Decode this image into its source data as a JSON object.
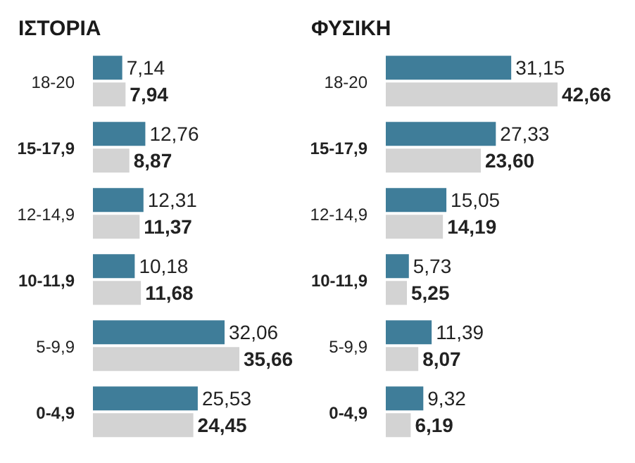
{
  "chart_data": [
    {
      "type": "bar",
      "orientation": "horizontal",
      "title": "ΙΣΤΟΡΙΑ",
      "categories": [
        "18-20",
        "15-17,9",
        "12-14,9",
        "10-11,9",
        "5-9,9",
        "0-4,9"
      ],
      "series": [
        {
          "color": "#3f7d99",
          "values": [
            7.14,
            12.76,
            12.31,
            10.18,
            32.06,
            25.53
          ],
          "value_labels": [
            "7,14",
            "12,76",
            "12,31",
            "10,18",
            "32,06",
            "25,53"
          ]
        },
        {
          "color": "#d3d3d3",
          "values": [
            7.94,
            8.87,
            11.37,
            11.68,
            35.66,
            24.45
          ],
          "value_labels": [
            "7,94",
            "8,87",
            "11,37",
            "11,68",
            "35,66",
            "24,45"
          ]
        }
      ],
      "tick_labels": false
    },
    {
      "type": "bar",
      "orientation": "horizontal",
      "title": "ΦΥΣΙΚΗ",
      "categories": [
        "18-20",
        "15-17,9",
        "12-14,9",
        "10-11,9",
        "5-9,9",
        "0-4,9"
      ],
      "series": [
        {
          "color": "#3f7d99",
          "values": [
            31.15,
            27.33,
            15.05,
            5.73,
            11.39,
            9.32
          ],
          "value_labels": [
            "31,15",
            "27,33",
            "15,05",
            "5,73",
            "11,39",
            "9,32"
          ]
        },
        {
          "color": "#d3d3d3",
          "values": [
            42.66,
            23.6,
            14.19,
            5.25,
            8.07,
            6.19
          ],
          "value_labels": [
            "42,66",
            "23,60",
            "14,19",
            "5,25",
            "8,07",
            "6,19"
          ]
        }
      ],
      "tick_labels": false
    }
  ]
}
